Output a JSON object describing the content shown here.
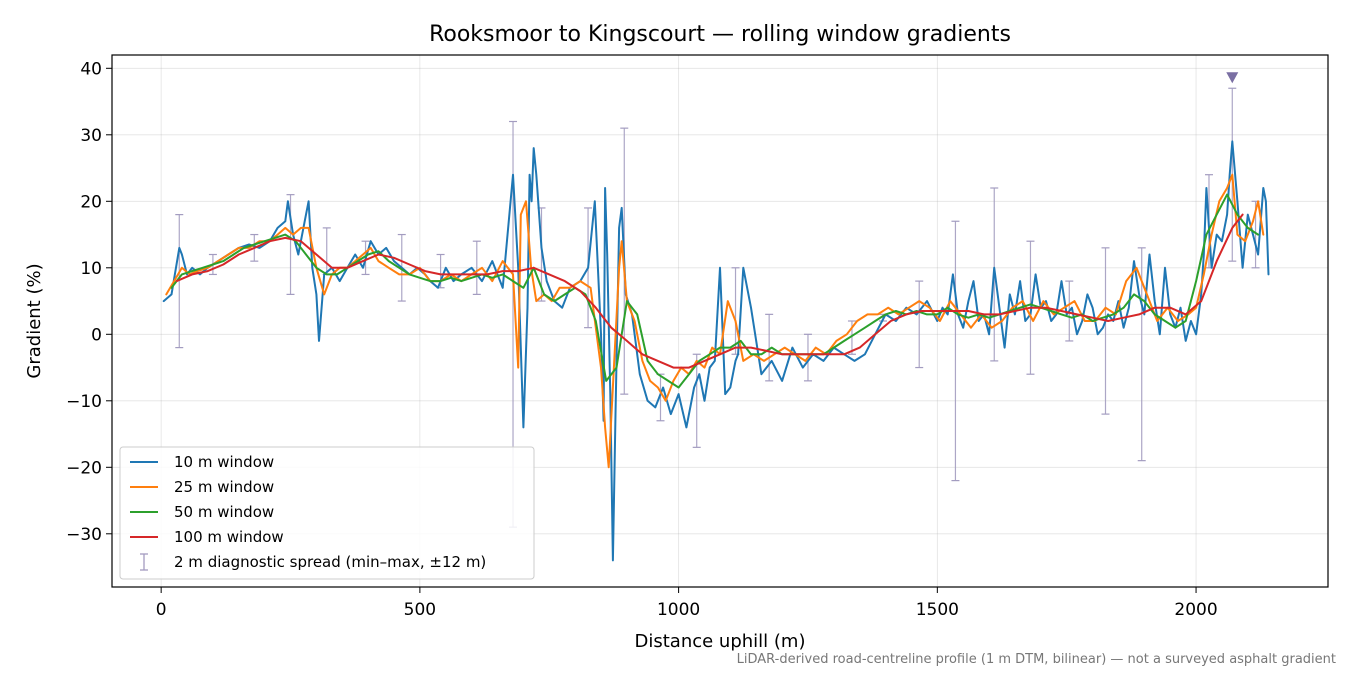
{
  "chart_data": {
    "type": "line",
    "title": "Rooksmoor to Kingscourt — rolling window gradients",
    "xlabel": "Distance uphill (m)",
    "ylabel": "Gradient (%)",
    "xlim": [
      -95,
      2255
    ],
    "ylim": [
      -38,
      42
    ],
    "xticks": [
      0,
      500,
      1000,
      1500,
      2000
    ],
    "xtick_labels": [
      "0",
      "500",
      "1000",
      "1500",
      "2000"
    ],
    "yticks": [
      -30,
      -20,
      -10,
      0,
      10,
      20,
      30,
      40
    ],
    "ytick_labels": [
      "−30",
      "−20",
      "−10",
      "0",
      "10",
      "20",
      "30",
      "40"
    ],
    "grid": true,
    "legend_position": "lower-left",
    "footnote": "LiDAR-derived road-centreline profile (1 m DTM, bilinear) — not a surveyed asphalt gradient",
    "series": [
      {
        "name": "10 m window",
        "color": "#1f77b4",
        "x": [
          5,
          20,
          35,
          40,
          50,
          60,
          75,
          90,
          110,
          130,
          150,
          170,
          190,
          210,
          225,
          240,
          245,
          255,
          265,
          280,
          285,
          292,
          300,
          305,
          315,
          330,
          345,
          360,
          375,
          390,
          405,
          420,
          435,
          450,
          465,
          480,
          495,
          510,
          520,
          535,
          550,
          565,
          580,
          600,
          620,
          640,
          660,
          680,
          690,
          700,
          708,
          712,
          716,
          720,
          725,
          735,
          745,
          760,
          775,
          790,
          810,
          825,
          838,
          850,
          855,
          858,
          862,
          868,
          873,
          878,
          885,
          890,
          898,
          910,
          925,
          940,
          955,
          970,
          985,
          1000,
          1015,
          1030,
          1040,
          1050,
          1060,
          1070,
          1080,
          1090,
          1100,
          1110,
          1115,
          1125,
          1140,
          1160,
          1180,
          1200,
          1220,
          1240,
          1260,
          1280,
          1300,
          1320,
          1340,
          1360,
          1380,
          1400,
          1420,
          1440,
          1460,
          1480,
          1500,
          1510,
          1520,
          1530,
          1540,
          1550,
          1560,
          1570,
          1580,
          1590,
          1600,
          1610,
          1620,
          1630,
          1640,
          1650,
          1660,
          1670,
          1680,
          1690,
          1700,
          1710,
          1720,
          1730,
          1740,
          1750,
          1760,
          1770,
          1780,
          1790,
          1800,
          1810,
          1820,
          1830,
          1840,
          1850,
          1860,
          1870,
          1880,
          1890,
          1900,
          1910,
          1920,
          1930,
          1940,
          1950,
          1960,
          1970,
          1980,
          1990,
          2000,
          2010,
          2015,
          2020,
          2030,
          2040,
          2050,
          2060,
          2065,
          2070,
          2080,
          2090,
          2100,
          2110,
          2120,
          2125,
          2130,
          2135,
          2140
        ],
        "y": [
          5,
          6,
          13,
          12,
          9,
          10,
          9,
          10,
          11,
          12,
          13,
          13.5,
          13,
          14,
          16,
          17,
          20,
          15,
          12,
          18,
          20,
          10,
          6,
          -1,
          9,
          10,
          8,
          10,
          12,
          10,
          14,
          12,
          13,
          11,
          10,
          9,
          10,
          9,
          8,
          7,
          10,
          8,
          9,
          10,
          8,
          11,
          7,
          24,
          10,
          -14,
          4,
          24,
          20,
          28,
          24,
          13,
          8,
          5,
          4,
          7,
          8,
          10,
          20,
          0,
          -13,
          22,
          12,
          -9,
          -34,
          -12,
          16,
          19,
          6,
          3,
          -6,
          -10,
          -11,
          -8,
          -12,
          -9,
          -14,
          -8,
          -6,
          -10,
          -5,
          -4,
          10,
          -9,
          -8,
          -4,
          -3,
          10,
          4,
          -6,
          -4,
          -7,
          -2,
          -5,
          -3,
          -4,
          -2,
          -3,
          -4,
          -3,
          0,
          3,
          2,
          4,
          3,
          5,
          2,
          4,
          3,
          9,
          3,
          1,
          5,
          8,
          2,
          3,
          0,
          10,
          4,
          -2,
          6,
          3,
          8,
          2,
          3,
          9,
          4,
          5,
          2,
          3,
          8,
          3,
          4,
          0,
          2,
          6,
          4,
          0,
          1,
          3,
          2,
          5,
          1,
          4,
          11,
          6,
          3,
          12,
          5,
          0,
          10,
          3,
          1,
          4,
          -1,
          2,
          0,
          6,
          12,
          22,
          10,
          15,
          14,
          18,
          24,
          29,
          20,
          10,
          18,
          15,
          12,
          17,
          22,
          20,
          9
        ]
      },
      {
        "name": "25 m window",
        "color": "#ff7f0e",
        "x": [
          10,
          25,
          40,
          55,
          70,
          90,
          110,
          130,
          150,
          170,
          190,
          210,
          225,
          240,
          255,
          270,
          285,
          300,
          315,
          330,
          345,
          360,
          375,
          390,
          405,
          420,
          440,
          460,
          480,
          500,
          520,
          540,
          560,
          580,
          600,
          620,
          640,
          660,
          680,
          690,
          695,
          705,
          715,
          725,
          740,
          755,
          770,
          790,
          810,
          830,
          850,
          858,
          865,
          875,
          885,
          890,
          900,
          915,
          930,
          945,
          960,
          975,
          990,
          1005,
          1020,
          1035,
          1050,
          1065,
          1080,
          1095,
          1110,
          1125,
          1145,
          1165,
          1185,
          1205,
          1225,
          1245,
          1265,
          1285,
          1305,
          1325,
          1345,
          1365,
          1385,
          1405,
          1425,
          1445,
          1465,
          1485,
          1505,
          1525,
          1545,
          1565,
          1585,
          1605,
          1625,
          1645,
          1665,
          1685,
          1705,
          1725,
          1745,
          1765,
          1785,
          1805,
          1825,
          1845,
          1865,
          1885,
          1905,
          1925,
          1945,
          1965,
          1985,
          2000,
          2015,
          2030,
          2045,
          2060,
          2070,
          2080,
          2095,
          2110,
          2120,
          2130
        ],
        "y": [
          6,
          8,
          10,
          9,
          9.5,
          10,
          11,
          12,
          13,
          13,
          14,
          14,
          15,
          16,
          15,
          16,
          16,
          10,
          6,
          9,
          10,
          10,
          11,
          12,
          13,
          11,
          10,
          9,
          9,
          10,
          8,
          8,
          9,
          8,
          9,
          10,
          8,
          11,
          9,
          -5,
          18,
          20,
          10,
          5,
          6,
          5,
          7,
          7,
          8,
          7,
          -5,
          -14,
          -20,
          -5,
          10,
          14,
          5,
          2,
          -4,
          -7,
          -8,
          -10,
          -7,
          -5,
          -6,
          -4,
          -5,
          -2,
          -3,
          5,
          2,
          -4,
          -3,
          -4,
          -3,
          -2,
          -3,
          -4,
          -2,
          -3,
          -1,
          0,
          2,
          3,
          3,
          4,
          3,
          4,
          5,
          4,
          2,
          5,
          3,
          1,
          3,
          1,
          2,
          4,
          5,
          2,
          5,
          3,
          4,
          5,
          2,
          2,
          4,
          3,
          8,
          10,
          6,
          2,
          4,
          2,
          3,
          4,
          9,
          15,
          20,
          22,
          24,
          15,
          14,
          17,
          20,
          15
        ]
      },
      {
        "name": "50 m window",
        "color": "#2ca02c",
        "x": [
          20,
          40,
          60,
          80,
          100,
          120,
          140,
          160,
          180,
          200,
          220,
          240,
          260,
          280,
          300,
          320,
          340,
          360,
          380,
          400,
          420,
          440,
          460,
          480,
          500,
          520,
          540,
          560,
          580,
          600,
          620,
          640,
          660,
          680,
          700,
          720,
          740,
          760,
          780,
          800,
          820,
          840,
          860,
          880,
          900,
          920,
          940,
          960,
          980,
          1000,
          1020,
          1040,
          1060,
          1080,
          1100,
          1120,
          1140,
          1160,
          1180,
          1200,
          1220,
          1240,
          1260,
          1280,
          1300,
          1320,
          1340,
          1360,
          1380,
          1400,
          1420,
          1440,
          1460,
          1480,
          1500,
          1520,
          1540,
          1560,
          1580,
          1600,
          1620,
          1640,
          1660,
          1680,
          1700,
          1720,
          1740,
          1760,
          1780,
          1800,
          1820,
          1840,
          1860,
          1880,
          1900,
          1920,
          1940,
          1960,
          1980,
          2000,
          2020,
          2040,
          2060,
          2080,
          2100,
          2120
        ],
        "y": [
          7,
          9,
          9.5,
          10,
          10.5,
          11,
          12,
          13,
          13.5,
          14,
          14.5,
          15,
          14,
          12,
          10,
          9,
          9,
          10,
          11,
          12,
          12.5,
          11,
          10,
          9,
          8.5,
          8,
          8,
          8.5,
          8,
          8.5,
          9,
          8.5,
          9,
          8,
          7,
          10,
          6,
          5,
          6,
          7,
          6,
          2,
          -7,
          -5,
          5,
          3,
          -4,
          -6,
          -7,
          -8,
          -6,
          -4,
          -3,
          -2,
          -2,
          -1,
          -3,
          -3,
          -2,
          -3,
          -3,
          -3,
          -3,
          -3,
          -2,
          -1,
          0,
          1,
          2,
          3,
          3.5,
          3,
          3.5,
          3,
          3,
          4,
          3,
          2.5,
          3,
          2.5,
          3,
          3.5,
          4,
          4.5,
          4,
          3.5,
          3,
          2.5,
          3,
          2,
          2.5,
          3,
          4,
          6,
          5,
          3,
          2,
          1,
          2,
          8,
          15,
          18,
          21,
          18,
          16,
          15
        ]
      },
      {
        "name": "100 m window",
        "color": "#d62728",
        "x": [
          30,
          60,
          90,
          120,
          150,
          180,
          210,
          240,
          270,
          300,
          330,
          360,
          390,
          420,
          450,
          480,
          510,
          540,
          570,
          600,
          630,
          660,
          690,
          720,
          750,
          780,
          810,
          840,
          870,
          900,
          930,
          960,
          990,
          1020,
          1050,
          1080,
          1110,
          1140,
          1170,
          1200,
          1230,
          1260,
          1290,
          1320,
          1350,
          1380,
          1410,
          1440,
          1470,
          1500,
          1530,
          1560,
          1590,
          1620,
          1650,
          1680,
          1710,
          1740,
          1770,
          1800,
          1830,
          1860,
          1890,
          1920,
          1950,
          1980,
          2010,
          2040,
          2070,
          2090
        ],
        "y": [
          8,
          9,
          9.5,
          10.5,
          12,
          13,
          14,
          14.5,
          14,
          12,
          10,
          10,
          11,
          12,
          11.5,
          10.5,
          9.5,
          9,
          9,
          9,
          9,
          9.5,
          9.5,
          10,
          9,
          8,
          6.5,
          4,
          1,
          -1,
          -3,
          -4,
          -5,
          -5,
          -4,
          -3,
          -2,
          -2,
          -2.5,
          -3,
          -3,
          -3,
          -3,
          -3,
          -2,
          0,
          2,
          3,
          3.5,
          3.5,
          3.5,
          3.5,
          3,
          3,
          3.5,
          4,
          4,
          3.5,
          3,
          2.5,
          2,
          2.5,
          3,
          4,
          4,
          3,
          5,
          11,
          16,
          18
        ]
      }
    ],
    "error_bars": {
      "name": "2 m diagnostic spread (min–max, ±12 m)",
      "color": "#a39cc0",
      "x": [
        35,
        100,
        180,
        250,
        320,
        395,
        465,
        540,
        610,
        680,
        735,
        825,
        895,
        965,
        1035,
        1110,
        1175,
        1250,
        1335,
        1395,
        1465,
        1535,
        1610,
        1680,
        1755,
        1825,
        1895,
        2025,
        2070,
        2115
      ],
      "low": [
        -2,
        9,
        11,
        6,
        9,
        9,
        5,
        7,
        6,
        -29,
        5,
        1,
        -9,
        -13,
        -17,
        -3,
        -7,
        -7,
        -3,
        2,
        -5,
        -22,
        -4,
        -6,
        -1,
        -12,
        -19,
        10,
        11,
        10
      ],
      "high": [
        18,
        12,
        15,
        21,
        16,
        14,
        15,
        12,
        14,
        32,
        19,
        19,
        31,
        -6,
        -3,
        10,
        3,
        0,
        2,
        3,
        8,
        17,
        22,
        14,
        8,
        13,
        13,
        24,
        37,
        20
      ]
    },
    "marker": {
      "x": 2070,
      "y": 38.5,
      "shape": "down-triangle",
      "color": "#7a6fa3"
    }
  }
}
